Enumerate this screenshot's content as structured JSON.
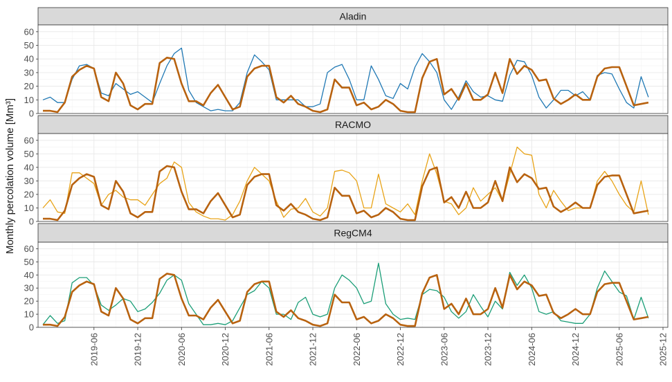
{
  "ylabel": "Monthly percolation volume [Mm³]",
  "colors": {
    "panel_bg": "#ffffff",
    "strip_bg": "#d9d9d9",
    "grid_major": "#e8e8e8",
    "grid_minor": "#f2f2f2",
    "border": "#333333",
    "text": "#4d4d4d",
    "reference": "#b8620f"
  },
  "chart_data": {
    "type": "line",
    "x_start": "2018-11",
    "x_end": "2025-12",
    "x_ticks": [
      "2019-06",
      "2019-12",
      "2020-06",
      "2020-12",
      "2021-06",
      "2021-12",
      "2022-06",
      "2022-12",
      "2023-06",
      "2023-12",
      "2024-06",
      "2024-12",
      "2025-06",
      "2025-12"
    ],
    "y_ticks": [
      0,
      10,
      20,
      30,
      40,
      50,
      60
    ],
    "ylim": [
      0,
      65
    ],
    "grid": true,
    "reference_series": {
      "values": [
        2,
        2,
        1,
        8,
        27,
        32,
        35,
        33,
        12,
        9,
        30,
        22,
        6,
        3,
        7,
        7,
        37,
        41,
        40,
        22,
        9,
        9,
        6,
        15,
        21,
        12,
        3,
        5,
        27,
        33,
        35,
        35,
        12,
        8,
        13,
        7,
        5,
        2,
        1,
        3,
        25,
        19,
        19,
        6,
        8,
        3,
        5,
        10,
        7,
        2,
        1,
        1,
        26,
        38,
        40,
        14,
        18,
        10,
        22,
        10,
        10,
        14,
        30,
        15,
        40,
        29,
        35,
        32,
        24,
        25,
        11,
        7,
        10,
        14,
        10,
        10,
        27,
        33,
        34,
        34,
        20,
        6,
        7,
        8
      ]
    },
    "panels": [
      {
        "name": "Aladin",
        "color": "#1f78b4",
        "values": [
          10,
          12,
          8,
          8,
          25,
          35,
          36,
          33,
          15,
          13,
          22,
          18,
          14,
          16,
          12,
          8,
          22,
          35,
          44,
          48,
          17,
          8,
          5,
          2,
          3,
          2,
          2,
          8,
          30,
          43,
          38,
          32,
          10,
          10,
          10,
          10,
          5,
          5,
          7,
          30,
          34,
          36,
          25,
          10,
          10,
          35,
          25,
          13,
          11,
          22,
          18,
          34,
          44,
          38,
          30,
          10,
          3,
          12,
          24,
          16,
          12,
          13,
          10,
          9,
          28,
          39,
          38,
          28,
          12,
          4,
          10,
          17,
          17,
          13,
          16,
          10,
          28,
          30,
          29,
          18,
          8,
          4,
          27,
          12
        ]
      },
      {
        "name": "RACMO",
        "color": "#e8a317",
        "values": [
          10,
          16,
          7,
          6,
          36,
          36,
          32,
          28,
          12,
          20,
          23,
          18,
          16,
          16,
          12,
          20,
          28,
          32,
          44,
          40,
          14,
          7,
          4,
          2,
          2,
          1,
          5,
          15,
          30,
          40,
          35,
          30,
          15,
          3,
          9,
          10,
          17,
          7,
          4,
          10,
          37,
          38,
          36,
          30,
          10,
          10,
          35,
          13,
          10,
          7,
          13,
          5,
          30,
          50,
          35,
          15,
          13,
          5,
          10,
          25,
          15,
          20,
          25,
          15,
          35,
          55,
          50,
          49,
          20,
          10,
          23,
          15,
          8,
          10,
          10,
          10,
          30,
          37,
          30,
          20,
          12,
          7,
          30,
          5
        ]
      },
      {
        "name": "RegCM4",
        "color": "#1b9e77",
        "values": [
          2,
          9,
          3,
          5,
          34,
          38,
          38,
          32,
          17,
          13,
          17,
          22,
          20,
          12,
          14,
          19,
          26,
          36,
          40,
          36,
          18,
          10,
          2,
          2,
          3,
          2,
          5,
          15,
          25,
          28,
          35,
          30,
          10,
          10,
          6,
          19,
          23,
          10,
          8,
          10,
          30,
          40,
          36,
          30,
          18,
          20,
          49,
          18,
          10,
          6,
          7,
          6,
          25,
          29,
          28,
          23,
          12,
          7,
          12,
          25,
          16,
          8,
          20,
          14,
          42,
          32,
          40,
          30,
          12,
          10,
          12,
          5,
          4,
          3,
          3,
          10,
          30,
          43,
          35,
          27,
          24,
          6,
          23,
          7
        ]
      }
    ]
  }
}
